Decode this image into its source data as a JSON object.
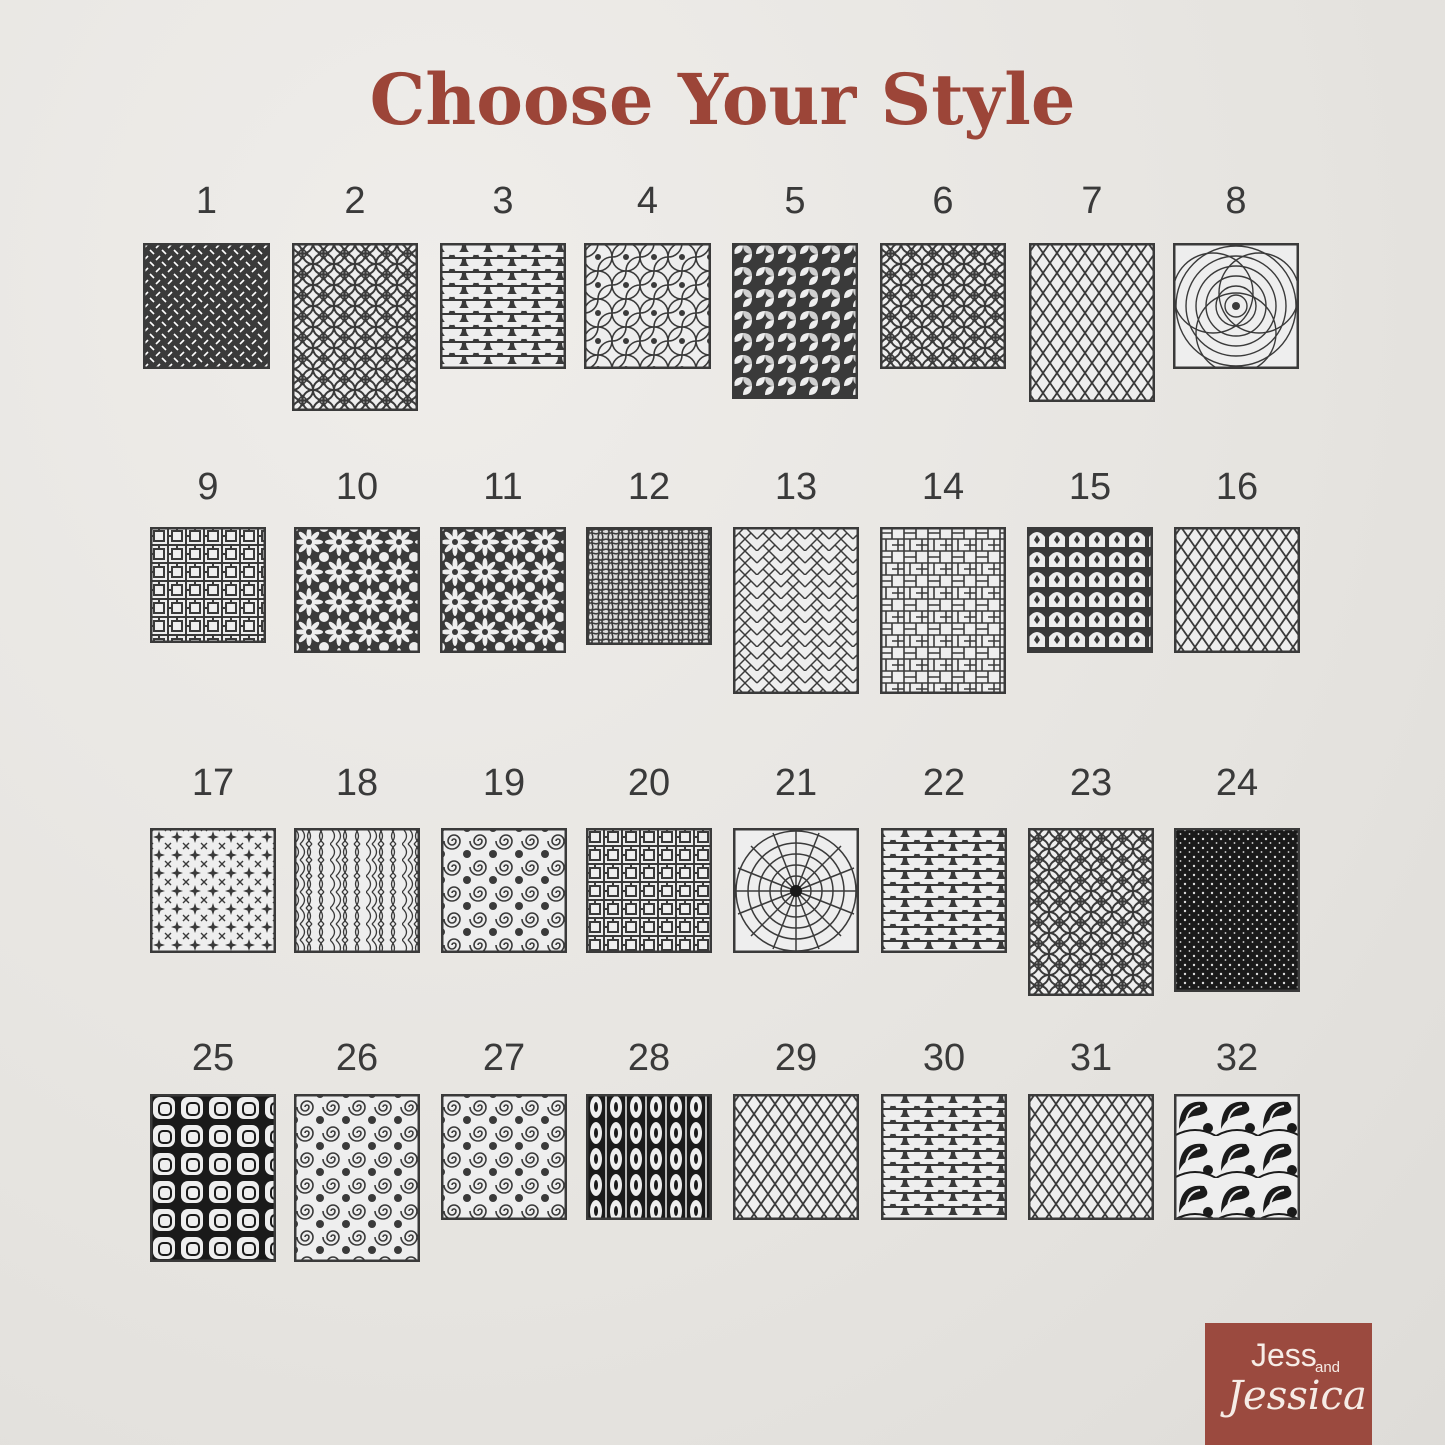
{
  "title": "Choose Your Style",
  "colors": {
    "title": "#9c4538",
    "panel": "#3a3a3a",
    "logo_bg": "#9b4a3f"
  },
  "logo": {
    "line1": "Jess",
    "line2": "and",
    "line3": "Jessica"
  },
  "styles": [
    {
      "label": "1",
      "pattern": "diamond-plate"
    },
    {
      "label": "2",
      "pattern": "geometric-flower"
    },
    {
      "label": "3",
      "pattern": "fish-scale"
    },
    {
      "label": "4",
      "pattern": "flower-of-life"
    },
    {
      "label": "5",
      "pattern": "pinwheel-circles"
    },
    {
      "label": "6",
      "pattern": "geometric-flower"
    },
    {
      "label": "7",
      "pattern": "diamond-mesh"
    },
    {
      "label": "8",
      "pattern": "radial-spiral"
    },
    {
      "label": "9",
      "pattern": "square-lattice"
    },
    {
      "label": "10",
      "pattern": "daisy"
    },
    {
      "label": "11",
      "pattern": "daisy"
    },
    {
      "label": "12",
      "pattern": "woven-net"
    },
    {
      "label": "13",
      "pattern": "herringbone"
    },
    {
      "label": "14",
      "pattern": "basket-brick"
    },
    {
      "label": "15",
      "pattern": "fleur-arch"
    },
    {
      "label": "16",
      "pattern": "diamond-mesh"
    },
    {
      "label": "17",
      "pattern": "stars"
    },
    {
      "label": "18",
      "pattern": "waves"
    },
    {
      "label": "19",
      "pattern": "swirls"
    },
    {
      "label": "20",
      "pattern": "square-lattice"
    },
    {
      "label": "21",
      "pattern": "radial-cobblestone"
    },
    {
      "label": "22",
      "pattern": "fish-scale"
    },
    {
      "label": "23",
      "pattern": "geometric-flower"
    },
    {
      "label": "24",
      "pattern": "dots"
    },
    {
      "label": "25",
      "pattern": "rounded-squares"
    },
    {
      "label": "26",
      "pattern": "swirls"
    },
    {
      "label": "27",
      "pattern": "swirls"
    },
    {
      "label": "28",
      "pattern": "ogee-chain"
    },
    {
      "label": "29",
      "pattern": "diamond-mesh"
    },
    {
      "label": "30",
      "pattern": "fish-scale"
    },
    {
      "label": "31",
      "pattern": "diamond-mesh"
    },
    {
      "label": "32",
      "pattern": "paisley"
    }
  ]
}
